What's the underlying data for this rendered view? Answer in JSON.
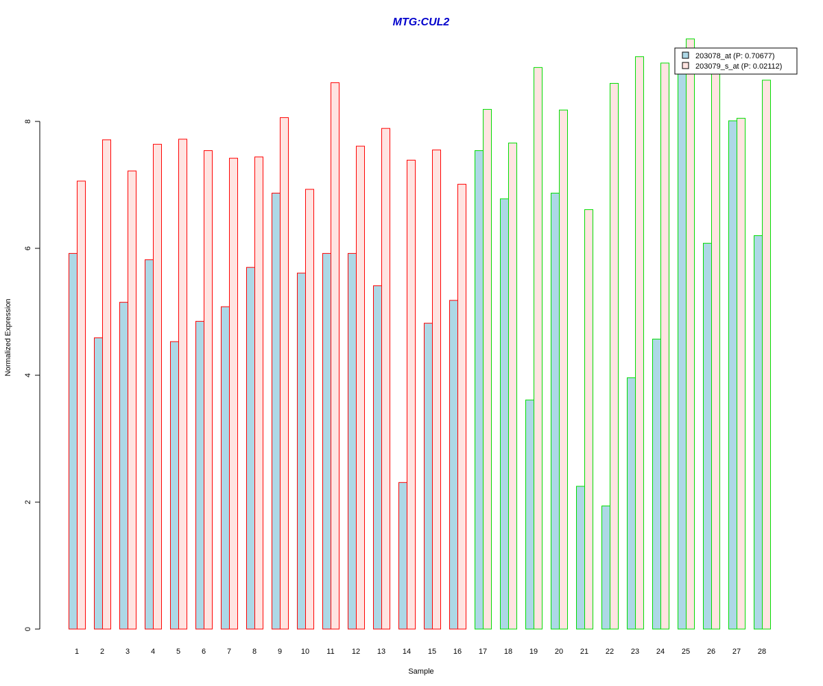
{
  "chart_data": {
    "type": "bar",
    "title": "MTG:CUL2",
    "xlabel": "Sample",
    "ylabel": "Normalized Expression",
    "ylim": [
      0,
      9.5
    ],
    "yticks": [
      0,
      2,
      4,
      6,
      8
    ],
    "categories": [
      "1",
      "2",
      "3",
      "4",
      "5",
      "6",
      "7",
      "8",
      "9",
      "10",
      "11",
      "12",
      "13",
      "14",
      "15",
      "16",
      "17",
      "18",
      "19",
      "20",
      "21",
      "22",
      "23",
      "24",
      "25",
      "26",
      "27",
      "28"
    ],
    "group_border_colors": [
      "#ff0000",
      "#ff0000",
      "#ff0000",
      "#ff0000",
      "#ff0000",
      "#ff0000",
      "#ff0000",
      "#ff0000",
      "#ff0000",
      "#ff0000",
      "#ff0000",
      "#ff0000",
      "#ff0000",
      "#ff0000",
      "#ff0000",
      "#ff0000",
      "#00dd00",
      "#00dd00",
      "#00dd00",
      "#00dd00",
      "#00dd00",
      "#00dd00",
      "#00dd00",
      "#00dd00",
      "#00dd00",
      "#00dd00",
      "#00dd00",
      "#00dd00"
    ],
    "series": [
      {
        "name": "203078_at (P: 0.70677)",
        "fill": "#add8e6",
        "values": [
          5.92,
          4.59,
          5.15,
          5.82,
          4.53,
          4.85,
          5.08,
          5.7,
          6.87,
          5.61,
          5.92,
          5.92,
          5.41,
          2.31,
          4.82,
          5.18,
          7.54,
          6.78,
          3.61,
          6.87,
          2.25,
          1.94,
          3.96,
          4.57,
          9.0,
          6.08,
          8.01,
          6.2
        ]
      },
      {
        "name": "203079_s_at (P: 0.02112)",
        "fill": "#ffe4e1",
        "values": [
          7.06,
          7.71,
          7.22,
          7.64,
          7.72,
          7.54,
          7.42,
          7.44,
          8.06,
          6.93,
          8.61,
          7.61,
          7.89,
          7.39,
          7.55,
          7.01,
          8.19,
          7.66,
          8.85,
          8.18,
          6.61,
          8.6,
          9.02,
          8.92,
          9.3,
          8.8,
          8.05,
          8.65
        ]
      }
    ],
    "legend_position": "top-right"
  }
}
